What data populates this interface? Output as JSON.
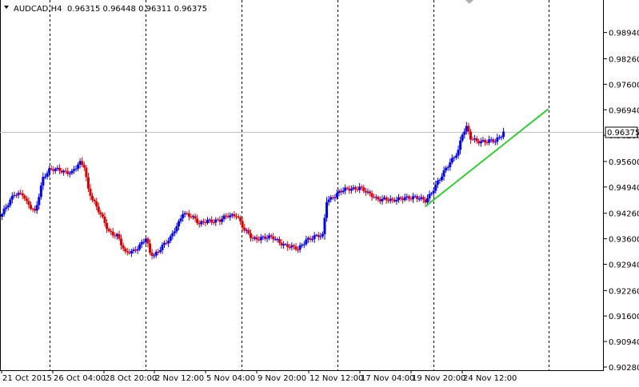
{
  "header": {
    "symbol": "AUDCAD,H4",
    "ohlc": "0.96315 0.96448 0.96311 0.96375"
  },
  "colors": {
    "bull": "#0000ff",
    "bear": "#dd0000",
    "trendline": "#33cc33",
    "grid": "#000000",
    "bid_line": "#c0c0c0",
    "price_label_bg": "#ffffff"
  },
  "chart_data": {
    "type": "candlestick",
    "symbol": "AUDCAD",
    "timeframe": "H4",
    "last_price": 0.96375,
    "last_price_label": "0.96375",
    "ylim": [
      0.9028,
      0.9916
    ],
    "y_ticks": [
      "0.98940",
      "0.98260",
      "0.97600",
      "0.96940",
      "0.96280",
      "0.95600",
      "0.94940",
      "0.94260",
      "0.93600",
      "0.92940",
      "0.92260",
      "0.91600",
      "0.90940",
      "0.90280"
    ],
    "x_ticks": [
      "21 Oct 2015",
      "26 Oct 04:00",
      "28 Oct 20:00",
      "2 Nov 12:00",
      "5 Nov 04:00",
      "9 Nov 20:00",
      "12 Nov 12:00",
      "17 Nov 04:00",
      "19 Nov 20:00",
      "24 Nov 12:00"
    ],
    "grid": "vertical-dashed",
    "keyframes": [
      [
        0,
        0.942
      ],
      [
        6,
        0.948
      ],
      [
        10,
        0.9475
      ],
      [
        12,
        0.945
      ],
      [
        16,
        0.943
      ],
      [
        20,
        0.952
      ],
      [
        23,
        0.9535
      ],
      [
        28,
        0.954
      ],
      [
        34,
        0.953
      ],
      [
        38,
        0.9555
      ],
      [
        40,
        0.955
      ],
      [
        42,
        0.949
      ],
      [
        46,
        0.944
      ],
      [
        52,
        0.938
      ],
      [
        56,
        0.937
      ],
      [
        60,
        0.932
      ],
      [
        64,
        0.933
      ],
      [
        70,
        0.936
      ],
      [
        72,
        0.932
      ],
      [
        74,
        0.9315
      ],
      [
        78,
        0.9345
      ],
      [
        82,
        0.936
      ],
      [
        86,
        0.94
      ],
      [
        88,
        0.943
      ],
      [
        92,
        0.942
      ],
      [
        96,
        0.9395
      ],
      [
        100,
        0.941
      ],
      [
        106,
        0.9405
      ],
      [
        110,
        0.942
      ],
      [
        114,
        0.9425
      ],
      [
        118,
        0.938
      ],
      [
        122,
        0.936
      ],
      [
        126,
        0.9365
      ],
      [
        132,
        0.936
      ],
      [
        136,
        0.935
      ],
      [
        140,
        0.934
      ],
      [
        144,
        0.933
      ],
      [
        148,
        0.936
      ],
      [
        152,
        0.9365
      ],
      [
        156,
        0.9365
      ],
      [
        158,
        0.946
      ],
      [
        164,
        0.948
      ],
      [
        170,
        0.949
      ],
      [
        174,
        0.9495
      ],
      [
        178,
        0.9475
      ],
      [
        182,
        0.9465
      ],
      [
        186,
        0.9465
      ],
      [
        190,
        0.9455
      ],
      [
        196,
        0.947
      ],
      [
        200,
        0.9465
      ],
      [
        206,
        0.946
      ],
      [
        210,
        0.949
      ],
      [
        214,
        0.952
      ],
      [
        218,
        0.956
      ],
      [
        222,
        0.959
      ],
      [
        224,
        0.963
      ],
      [
        226,
        0.9645
      ],
      [
        228,
        0.962
      ],
      [
        232,
        0.9615
      ],
      [
        236,
        0.961
      ],
      [
        240,
        0.9612
      ],
      [
        244,
        0.9638
      ]
    ],
    "trendline": {
      "from": [
        206,
        0.9443
      ],
      "to": [
        266,
        0.9696
      ]
    }
  }
}
